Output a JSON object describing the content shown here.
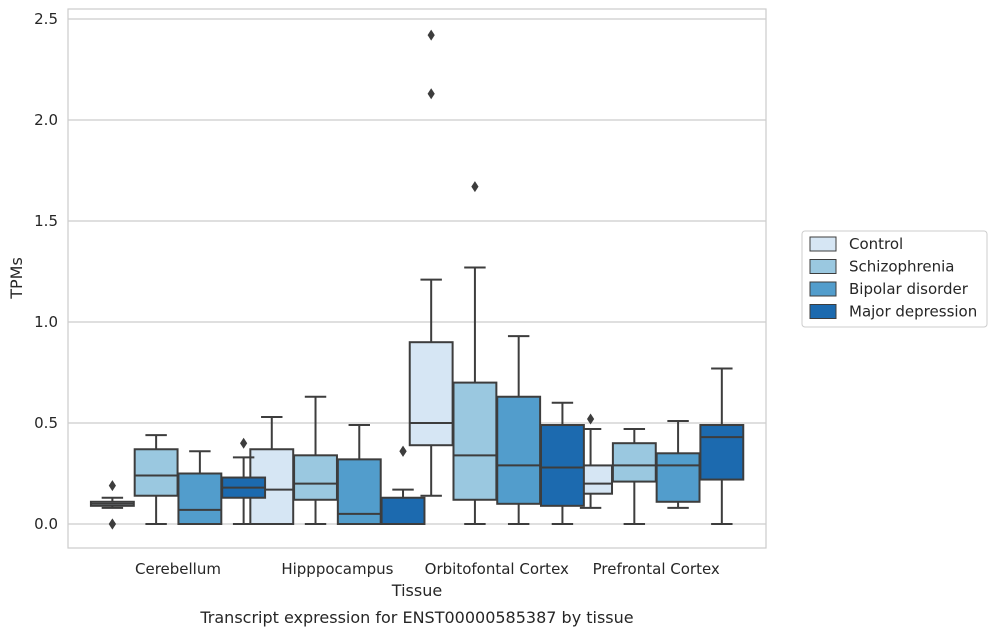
{
  "chart_data": {
    "type": "box",
    "caption": "Transcript expression for ENST00000585387 by tissue",
    "xlabel": "Tissue",
    "ylabel": "TPMs",
    "ylim": [
      -0.12,
      2.55
    ],
    "yticks": [
      0.0,
      0.5,
      1.0,
      1.5,
      2.0,
      2.5
    ],
    "ytick_labels": [
      "0.0",
      "0.5",
      "1.0",
      "1.5",
      "2.0",
      "2.5"
    ],
    "grid": true,
    "legend_position": "right",
    "categories": [
      "Cerebellum",
      "Hipppocampus",
      "Orbitofontal Cortex",
      "Prefrontal Cortex"
    ],
    "series": [
      {
        "name": "Control",
        "color": "#d6e6f4",
        "boxes": [
          {
            "whislo": 0.08,
            "q1": 0.09,
            "med": 0.1,
            "q3": 0.11,
            "whishi": 0.13,
            "fliers": [
              0.0,
              0.0,
              0.19
            ]
          },
          {
            "whislo": 0.0,
            "q1": 0.0,
            "med": 0.17,
            "q3": 0.37,
            "whishi": 0.53,
            "fliers": []
          },
          {
            "whislo": 0.14,
            "q1": 0.39,
            "med": 0.5,
            "q3": 0.9,
            "whishi": 1.21,
            "fliers": [
              2.13,
              2.42
            ]
          },
          {
            "whislo": 0.08,
            "q1": 0.15,
            "med": 0.2,
            "q3": 0.29,
            "whishi": 0.47,
            "fliers": [
              0.52
            ]
          }
        ]
      },
      {
        "name": "Schizophrenia",
        "color": "#9ac8e0",
        "boxes": [
          {
            "whislo": 0.0,
            "q1": 0.14,
            "med": 0.24,
            "q3": 0.37,
            "whishi": 0.44,
            "fliers": []
          },
          {
            "whislo": 0.0,
            "q1": 0.12,
            "med": 0.2,
            "q3": 0.34,
            "whishi": 0.63,
            "fliers": []
          },
          {
            "whislo": 0.0,
            "q1": 0.12,
            "med": 0.34,
            "q3": 0.7,
            "whishi": 1.27,
            "fliers": [
              1.67
            ]
          },
          {
            "whislo": 0.0,
            "q1": 0.21,
            "med": 0.29,
            "q3": 0.4,
            "whishi": 0.47,
            "fliers": []
          }
        ]
      },
      {
        "name": "Bipolar disorder",
        "color": "#529dcc",
        "boxes": [
          {
            "whislo": 0.0,
            "q1": 0.0,
            "med": 0.07,
            "q3": 0.25,
            "whishi": 0.36,
            "fliers": []
          },
          {
            "whislo": 0.0,
            "q1": 0.0,
            "med": 0.05,
            "q3": 0.32,
            "whishi": 0.49,
            "fliers": []
          },
          {
            "whislo": 0.0,
            "q1": 0.1,
            "med": 0.29,
            "q3": 0.63,
            "whishi": 0.93,
            "fliers": []
          },
          {
            "whislo": 0.08,
            "q1": 0.11,
            "med": 0.29,
            "q3": 0.35,
            "whishi": 0.51,
            "fliers": []
          }
        ]
      },
      {
        "name": "Major depression",
        "color": "#1c6aaf",
        "boxes": [
          {
            "whislo": 0.0,
            "q1": 0.13,
            "med": 0.18,
            "q3": 0.23,
            "whishi": 0.33,
            "fliers": [
              0.4
            ]
          },
          {
            "whislo": 0.0,
            "q1": 0.0,
            "med": 0.0,
            "q3": 0.13,
            "whishi": 0.17,
            "fliers": [
              0.36,
              0.36
            ]
          },
          {
            "whislo": 0.0,
            "q1": 0.09,
            "med": 0.28,
            "q3": 0.49,
            "whishi": 0.6,
            "fliers": []
          },
          {
            "whislo": 0.0,
            "q1": 0.22,
            "med": 0.43,
            "q3": 0.49,
            "whishi": 0.77,
            "fliers": []
          }
        ]
      }
    ]
  }
}
